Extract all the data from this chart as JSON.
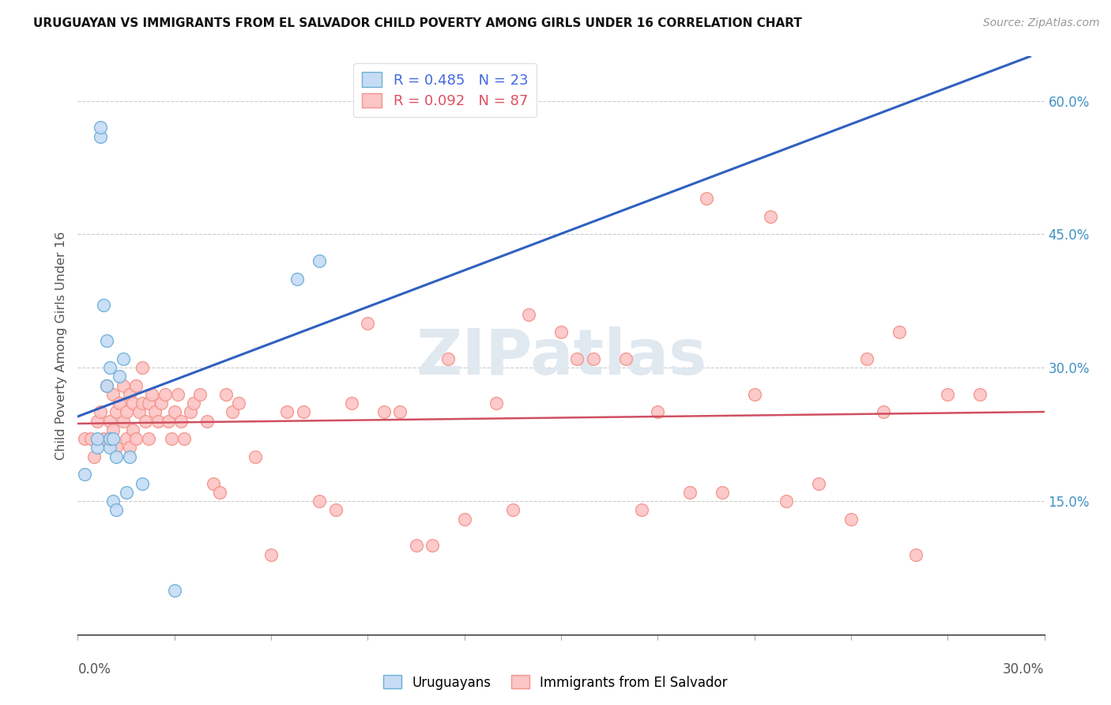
{
  "title": "URUGUAYAN VS IMMIGRANTS FROM EL SALVADOR CHILD POVERTY AMONG GIRLS UNDER 16 CORRELATION CHART",
  "source": "Source: ZipAtlas.com",
  "ylabel": "Child Poverty Among Girls Under 16",
  "xmin": 0.0,
  "xmax": 0.3,
  "ymin": 0.0,
  "ymax": 0.65,
  "yticks": [
    0.0,
    0.15,
    0.3,
    0.45,
    0.6
  ],
  "ytick_labels": [
    "",
    "15.0%",
    "30.0%",
    "45.0%",
    "60.0%"
  ],
  "R_uruguayan": 0.485,
  "N_uruguayan": 23,
  "R_salvador": 0.092,
  "N_salvador": 87,
  "uruguayan_fill": "#c6dcf5",
  "uruguayan_edge": "#6baed6",
  "salvador_fill": "#fcc5c5",
  "salvador_edge": "#f4928a",
  "line_uruguayan_color": "#3060c0",
  "line_salvador_color": "#d05060",
  "watermark": "ZIPatlas",
  "uruguayan_x": [
    0.002,
    0.006,
    0.006,
    0.007,
    0.007,
    0.008,
    0.009,
    0.009,
    0.01,
    0.01,
    0.01,
    0.011,
    0.011,
    0.012,
    0.012,
    0.013,
    0.014,
    0.015,
    0.016,
    0.02,
    0.03,
    0.068,
    0.075
  ],
  "uruguayan_y": [
    0.18,
    0.21,
    0.22,
    0.56,
    0.57,
    0.37,
    0.33,
    0.28,
    0.3,
    0.21,
    0.22,
    0.15,
    0.22,
    0.14,
    0.2,
    0.29,
    0.31,
    0.16,
    0.2,
    0.17,
    0.05,
    0.4,
    0.42
  ],
  "salvador_x": [
    0.002,
    0.004,
    0.005,
    0.006,
    0.007,
    0.008,
    0.009,
    0.01,
    0.01,
    0.011,
    0.011,
    0.012,
    0.012,
    0.013,
    0.014,
    0.014,
    0.015,
    0.015,
    0.016,
    0.016,
    0.017,
    0.017,
    0.018,
    0.018,
    0.019,
    0.02,
    0.02,
    0.021,
    0.022,
    0.022,
    0.023,
    0.024,
    0.025,
    0.026,
    0.027,
    0.028,
    0.029,
    0.03,
    0.031,
    0.032,
    0.033,
    0.035,
    0.036,
    0.038,
    0.04,
    0.042,
    0.044,
    0.046,
    0.048,
    0.05,
    0.055,
    0.06,
    0.065,
    0.07,
    0.075,
    0.08,
    0.085,
    0.09,
    0.1,
    0.11,
    0.12,
    0.13,
    0.14,
    0.15,
    0.16,
    0.17,
    0.18,
    0.19,
    0.2,
    0.21,
    0.22,
    0.23,
    0.24,
    0.25,
    0.26,
    0.27,
    0.28,
    0.195,
    0.215,
    0.245,
    0.255,
    0.175,
    0.155,
    0.135,
    0.115,
    0.095,
    0.105
  ],
  "salvador_y": [
    0.22,
    0.22,
    0.2,
    0.24,
    0.25,
    0.22,
    0.28,
    0.22,
    0.24,
    0.27,
    0.23,
    0.25,
    0.21,
    0.26,
    0.24,
    0.28,
    0.25,
    0.22,
    0.27,
    0.21,
    0.26,
    0.23,
    0.28,
    0.22,
    0.25,
    0.26,
    0.3,
    0.24,
    0.26,
    0.22,
    0.27,
    0.25,
    0.24,
    0.26,
    0.27,
    0.24,
    0.22,
    0.25,
    0.27,
    0.24,
    0.22,
    0.25,
    0.26,
    0.27,
    0.24,
    0.17,
    0.16,
    0.27,
    0.25,
    0.26,
    0.2,
    0.09,
    0.25,
    0.25,
    0.15,
    0.14,
    0.26,
    0.35,
    0.25,
    0.1,
    0.13,
    0.26,
    0.36,
    0.34,
    0.31,
    0.31,
    0.25,
    0.16,
    0.16,
    0.27,
    0.15,
    0.17,
    0.13,
    0.25,
    0.09,
    0.27,
    0.27,
    0.49,
    0.47,
    0.31,
    0.34,
    0.14,
    0.31,
    0.14,
    0.31,
    0.25,
    0.1
  ]
}
